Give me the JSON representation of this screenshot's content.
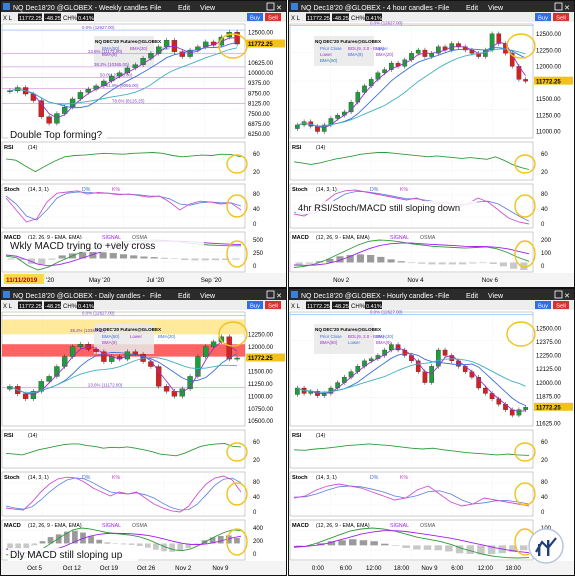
{
  "colors": {
    "frame": "#111111",
    "titlebar": "#2b2b2b",
    "grid": "#dcdcdc",
    "candle_up": "#1e9e3a",
    "candle_down": "#d62020",
    "ema_blue": "#3a6fd8",
    "ema_purple": "#9b2fc9",
    "signal": "#a020f0",
    "zone_red": "#ff3b3b",
    "zone_yellow": "#ffd84a",
    "circle": "#f2c21b",
    "price_tag": "#f2c21b"
  },
  "panels": [
    {
      "id": "weekly",
      "title": "NQ Dec18'20 @GLOBEX -  Weekly candles -",
      "menu": [
        "File",
        "Edit",
        "View"
      ],
      "symbol_box": "11772.25",
      "change_box": "-48.25",
      "change_pct": "0.41%",
      "buttons": [
        "Buy",
        "Sell"
      ],
      "study_legend": "NQ DEC'20 Futures@GLOBEX",
      "fib_labels": [
        "0.0% (12627.00)",
        "23.6% (11172.00)",
        "38.2% (10365.00)",
        "50.0% (9710.00)",
        "61.8% (9056.00)",
        "78.6% (8125.25)"
      ],
      "overlay_labels": [
        "BMA(50)",
        "BMA(20)",
        "Lower",
        "BMA(9)"
      ],
      "annotation": "Double Top forming?",
      "annotation2": "Wkly MACD trying to +vely cross",
      "date_badge": "11/11/2019",
      "x_ticks": [
        "Mar '20",
        "May '20",
        "Jul '20",
        "Sep '20"
      ],
      "price_ticks": [
        "12500.00",
        "11772.25",
        "10625.00",
        "10000.00",
        "9375.00",
        "8750.00",
        "8125.00",
        "7500.00",
        "6875.00",
        "6250.00"
      ],
      "rsi": {
        "label": "RSI",
        "param": "(14)",
        "ticks": [
          "60",
          "20"
        ]
      },
      "stoch": {
        "label": "Stoch",
        "param": "(14, 3, 1)",
        "legend": [
          "D%",
          "K%"
        ],
        "ticks": [
          "80",
          "40",
          "0"
        ]
      },
      "macd": {
        "label": "MACD",
        "param": "(12, 26, 9 - EMA, EMA)",
        "legend": [
          "SIGNAL",
          "OSMA"
        ],
        "ticks": [
          "500",
          "250",
          "0"
        ]
      }
    },
    {
      "id": "h4",
      "title": "NQ Dec18'20 @GLOBEX -  4 hour candles -",
      "menu": [
        "File",
        "Edit",
        "View"
      ],
      "symbol_box": "11772.25",
      "change_box": "-48.25",
      "change_pct": "0.41%",
      "buttons": [
        "Buy",
        "Sell"
      ],
      "study_legend": "NQ DEC'20 Futures@GLOBEX",
      "fib_labels": [
        "0.0% (12627.00)"
      ],
      "overlay_labels": [
        "Prior Close",
        "BOL(9, 2.0 - BMA)",
        "Upper",
        "Lower",
        "BMA(9)",
        "BMA(20)",
        "BMA(50)"
      ],
      "annotation": "4hr RSI/Stoch/MACD still sloping down",
      "x_ticks": [
        "Nov 2",
        "Nov 4",
        "Nov 6"
      ],
      "price_ticks": [
        "12500.00",
        "12250.00",
        "12000.00",
        "11772.25",
        "11500.00",
        "11250.00",
        "11000.00"
      ],
      "rsi": {
        "label": "RSI",
        "param": "(14)",
        "ticks": [
          "60",
          "20"
        ]
      },
      "stoch": {
        "label": "Stoch",
        "param": "(14, 3, 1)",
        "legend": [
          "D%",
          "K%"
        ],
        "ticks": [
          "80",
          "40",
          "0"
        ]
      },
      "macd": {
        "label": "MACD",
        "param": "(12, 26, 9 - EMA, EMA)",
        "legend": [
          "SIGNAL",
          "OSMA"
        ],
        "ticks": [
          "200",
          "100",
          "0"
        ]
      }
    },
    {
      "id": "daily",
      "title": "NQ Dec18'20 @GLOBEX -  Daily candles -",
      "menu": [
        "File",
        "Edit",
        "View"
      ],
      "symbol_box": "11772.25",
      "change_box": "-48.25",
      "change_pct": "0.41%",
      "buttons": [
        "Buy",
        "Sell"
      ],
      "study_legend": "NQ DEC'20 Futures@GLOBEX",
      "fib_labels": [
        "0.0% (12627.00)",
        "23.6% (11172.00)",
        "38.2% (10365.00)"
      ],
      "overlay_labels": [
        "BMA(50)",
        "Lower",
        "BMA(20)",
        "BMA(9)"
      ],
      "annotation": "Dly MACD still sloping up",
      "x_ticks": [
        "Oct 5",
        "Oct 12",
        "Oct 19",
        "Oct 26",
        "Nov 2",
        "Nov 9"
      ],
      "price_ticks": [
        "12250.00",
        "12000.00",
        "11772.25",
        "11500.00",
        "11250.00",
        "11000.00",
        "10750.00",
        "10500.00"
      ],
      "rsi": {
        "label": "RSI",
        "param": "(14)",
        "ticks": [
          "60",
          "20"
        ]
      },
      "stoch": {
        "label": "Stoch",
        "param": "(14, 3, 1)",
        "legend": [
          "D%",
          "K%"
        ],
        "ticks": [
          "80",
          "40",
          "0"
        ]
      },
      "macd": {
        "label": "MACD",
        "param": "(12, 26, 9 - EMA, EMA)",
        "legend": [
          "SIGNAL",
          "OSMA"
        ],
        "ticks": [
          "400",
          "200",
          "0"
        ]
      }
    },
    {
      "id": "hourly",
      "title": "NQ Dec18'20 @GLOBEX -  Hourly candles -",
      "menu": [
        "File",
        "Edit",
        "View"
      ],
      "symbol_box": "11772.25",
      "change_box": "-48.25",
      "change_pct": "0.41%",
      "buttons": [
        "Buy",
        "Sell"
      ],
      "study_legend": "NQ DEC'20 Futures@GLOBEX",
      "fib_labels": [
        "0.0% (12627.00)"
      ],
      "overlay_labels": [
        "Prior Close",
        "BOL(9, 2.0 - BMA)",
        "BMA(20)",
        "BMA(50)",
        "Lower",
        "BMA(9)"
      ],
      "annotation": "",
      "x_ticks": [
        "0:00",
        "6:00",
        "12:00",
        "18:00",
        "Nov 9",
        "6:00",
        "12:00",
        "18:00"
      ],
      "price_ticks": [
        "12500.00",
        "12375.00",
        "12250.00",
        "12125.00",
        "12000.00",
        "11875.00",
        "11772.25",
        "11625.00"
      ],
      "rsi": {
        "label": "RSI",
        "param": "(14)",
        "ticks": [
          "60",
          "20"
        ]
      },
      "stoch": {
        "label": "Stoch",
        "param": "(14, 3, 1)",
        "legend": [
          "D%",
          "K%"
        ],
        "ticks": [
          "80",
          "40",
          "0"
        ]
      },
      "macd": {
        "label": "MACD",
        "param": "(12, 26, 9 - EMA, EMA)",
        "legend": [
          "SIGNAL",
          "OSMA"
        ],
        "ticks": [
          "100",
          "50",
          "0"
        ]
      }
    }
  ],
  "chart_data": [
    {
      "type": "candlestick",
      "panel": "weekly",
      "title": "NQ Dec18'20 @GLOBEX - Weekly candles",
      "ylim": [
        6000,
        13000
      ],
      "last_price": 11772.25,
      "price_path": [
        8900,
        9100,
        8700,
        8300,
        7300,
        6900,
        7500,
        7900,
        8400,
        8800,
        9000,
        9200,
        9500,
        9800,
        10000,
        10300,
        10500,
        10900,
        11200,
        11600,
        12000,
        11300,
        11000,
        11400,
        11600,
        11900,
        11700,
        12200,
        12500,
        11772
      ],
      "rsi_path": [
        55,
        52,
        38,
        25,
        38,
        50,
        60,
        63,
        64,
        66,
        68,
        67,
        66,
        68,
        69,
        70,
        68,
        63,
        60,
        62,
        64,
        63,
        66,
        65,
        60
      ],
      "stoch_k": [
        70,
        40,
        10,
        18,
        60,
        82,
        85,
        88,
        80,
        84,
        82,
        78,
        80,
        76,
        72,
        75,
        60,
        40,
        55,
        62,
        60,
        55,
        58,
        40
      ],
      "stoch_d": [
        75,
        55,
        25,
        15,
        40,
        70,
        82,
        85,
        84,
        82,
        82,
        80,
        79,
        78,
        75,
        74,
        68,
        55,
        52,
        58,
        60,
        58,
        58,
        50
      ],
      "macd_line": [
        60,
        20,
        -180,
        -300,
        -220,
        -80,
        40,
        160,
        260,
        340,
        400,
        440,
        460,
        470,
        480,
        470,
        440,
        400,
        370,
        350,
        340,
        330,
        330
      ],
      "signal_line": [
        90,
        60,
        -40,
        -150,
        -190,
        -160,
        -90,
        0,
        90,
        180,
        260,
        330,
        380,
        420,
        445,
        455,
        450,
        440,
        420,
        400,
        385,
        370,
        360
      ],
      "osma": [
        -30,
        -40,
        -140,
        -150,
        -30,
        80,
        130,
        160,
        170,
        160,
        140,
        110,
        80,
        50,
        35,
        15,
        -10,
        -40,
        -50,
        -50,
        -45,
        -40,
        -30
      ]
    },
    {
      "type": "candlestick",
      "panel": "h4",
      "title": "NQ Dec18'20 @GLOBEX - 4 hour candles",
      "ylim": [
        10900,
        12650
      ],
      "last_price": 11772.25,
      "price_path": [
        11100,
        11150,
        11080,
        11000,
        11100,
        11200,
        11250,
        11300,
        11450,
        11600,
        11700,
        11800,
        11900,
        11950,
        12050,
        12000,
        12100,
        12200,
        12250,
        12150,
        12200,
        12300,
        12250,
        12350,
        12300,
        12250,
        12200,
        12150,
        12250,
        12500,
        12350,
        12200,
        12000,
        11800,
        11772
      ],
      "rsi_path": [
        48,
        45,
        42,
        45,
        50,
        55,
        58,
        62,
        66,
        68,
        70,
        70,
        68,
        66,
        64,
        62,
        60,
        62,
        60,
        58,
        56,
        58,
        56,
        54,
        60,
        52,
        42,
        35,
        30
      ],
      "stoch_k": [
        30,
        25,
        40,
        60,
        80,
        88,
        90,
        85,
        80,
        75,
        70,
        65,
        70,
        60,
        55,
        60,
        50,
        55,
        70,
        60,
        40,
        20,
        10,
        5
      ],
      "stoch_d": [
        35,
        30,
        32,
        45,
        65,
        80,
        86,
        86,
        82,
        78,
        73,
        68,
        68,
        64,
        60,
        58,
        55,
        54,
        60,
        62,
        55,
        40,
        25,
        12
      ],
      "macd_line": [
        -40,
        -30,
        -10,
        20,
        60,
        100,
        140,
        170,
        180,
        175,
        165,
        150,
        140,
        130,
        125,
        120,
        115,
        120,
        125,
        110,
        80,
        40,
        10
      ],
      "signal_line": [
        -20,
        -22,
        -20,
        -10,
        10,
        40,
        75,
        110,
        135,
        150,
        155,
        155,
        150,
        145,
        140,
        135,
        130,
        128,
        127,
        122,
        110,
        90,
        70
      ],
      "osma": [
        -20,
        -10,
        10,
        30,
        50,
        60,
        65,
        60,
        45,
        25,
        10,
        -5,
        -10,
        -15,
        -15,
        -15,
        -15,
        -8,
        -2,
        -12,
        -30,
        -50,
        -60
      ]
    },
    {
      "type": "candlestick",
      "panel": "daily",
      "title": "NQ Dec18'20 @GLOBEX - Daily candles",
      "ylim": [
        10400,
        12700
      ],
      "last_price": 11772.25,
      "price_path": [
        11200,
        11050,
        10950,
        11100,
        11300,
        11400,
        11600,
        11800,
        12000,
        12050,
        11950,
        11900,
        11700,
        11800,
        11750,
        11900,
        11850,
        11700,
        11600,
        11200,
        11100,
        11000,
        11150,
        11400,
        11800,
        12000,
        12100,
        12200,
        11750,
        11772
      ],
      "rsi_path": [
        40,
        38,
        36,
        42,
        48,
        52,
        56,
        60,
        62,
        62,
        58,
        56,
        52,
        54,
        53,
        55,
        52,
        48,
        44,
        38,
        36,
        34,
        40,
        48,
        56,
        60,
        62,
        63,
        56,
        55
      ],
      "stoch_k": [
        15,
        12,
        10,
        30,
        55,
        75,
        88,
        92,
        90,
        80,
        65,
        55,
        45,
        55,
        50,
        55,
        40,
        25,
        15,
        8,
        5,
        20,
        50,
        75,
        90,
        95,
        85,
        55
      ],
      "stoch_d": [
        20,
        15,
        12,
        18,
        35,
        55,
        72,
        85,
        90,
        88,
        78,
        66,
        55,
        52,
        50,
        53,
        48,
        40,
        27,
        16,
        10,
        11,
        25,
        48,
        72,
        87,
        90,
        78
      ],
      "macd_line": [
        -120,
        -150,
        -160,
        -130,
        -80,
        -20,
        40,
        100,
        150,
        170,
        160,
        140,
        120,
        110,
        100,
        90,
        70,
        40,
        0,
        -40,
        -70,
        -80,
        -60,
        -20,
        30,
        80,
        120,
        150,
        140
      ],
      "signal_line": [
        -60,
        -80,
        -100,
        -110,
        -105,
        -90,
        -60,
        -30,
        10,
        50,
        80,
        100,
        110,
        112,
        110,
        106,
        98,
        86,
        68,
        46,
        22,
        2,
        -10,
        -12,
        -4,
        14,
        38,
        62,
        80
      ],
      "osma": [
        -60,
        -70,
        -60,
        -20,
        25,
        70,
        100,
        130,
        140,
        120,
        80,
        40,
        10,
        -2,
        -10,
        -16,
        -28,
        -46,
        -68,
        -86,
        -92,
        -82,
        -50,
        -8,
        34,
        66,
        82,
        88,
        60
      ]
    },
    {
      "type": "candlestick",
      "panel": "hourly",
      "title": "NQ Dec18'20 @GLOBEX - Hourly candles",
      "ylim": [
        11600,
        12650
      ],
      "last_price": 11772.25,
      "price_path": [
        11950,
        11900,
        11920,
        11880,
        11900,
        11950,
        12000,
        12050,
        12100,
        12150,
        12200,
        12220,
        12250,
        12300,
        12350,
        12300,
        12250,
        12200,
        12100,
        12000,
        12150,
        12300,
        12250,
        12200,
        12150,
        12100,
        12050,
        11950,
        11900,
        11850,
        11800,
        11750,
        11700,
        11750,
        11772
      ],
      "rsi_path": [
        48,
        47,
        50,
        52,
        55,
        58,
        60,
        62,
        60,
        58,
        55,
        52,
        50,
        52,
        48,
        45,
        42,
        40,
        38,
        36,
        38,
        36,
        35
      ],
      "stoch_k": [
        40,
        45,
        60,
        70,
        75,
        70,
        65,
        55,
        45,
        35,
        40,
        60,
        70,
        50,
        30,
        20,
        25,
        40,
        35,
        30,
        25,
        20
      ],
      "stoch_d": [
        42,
        43,
        50,
        60,
        68,
        70,
        68,
        62,
        55,
        45,
        40,
        46,
        56,
        58,
        50,
        35,
        25,
        28,
        33,
        34,
        30,
        25
      ],
      "macd_line": [
        -10,
        -5,
        10,
        30,
        50,
        70,
        80,
        85,
        80,
        70,
        55,
        40,
        30,
        20,
        5,
        -15,
        -30,
        -45,
        -55,
        -60,
        -62,
        -60
      ],
      "signal_line": [
        -5,
        -5,
        0,
        10,
        25,
        40,
        55,
        65,
        72,
        72,
        68,
        60,
        52,
        44,
        35,
        24,
        12,
        0,
        -12,
        -22,
        -30,
        -36
      ],
      "osma": [
        -5,
        0,
        10,
        20,
        25,
        30,
        25,
        20,
        8,
        -2,
        -13,
        -20,
        -22,
        -24,
        -30,
        -39,
        -42,
        -45,
        -43,
        -38,
        -32,
        -24
      ]
    }
  ]
}
